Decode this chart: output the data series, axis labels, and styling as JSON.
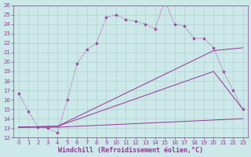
{
  "xlabel": "Windchill (Refroidissement éolien,°C)",
  "bg_color": "#cce8e8",
  "line_color": "#993399",
  "grid_color": "#aacccc",
  "xlim": [
    -0.5,
    23.5
  ],
  "ylim": [
    12,
    26
  ],
  "xticks": [
    0,
    1,
    2,
    3,
    4,
    5,
    6,
    7,
    8,
    9,
    10,
    11,
    12,
    13,
    14,
    15,
    16,
    17,
    18,
    19,
    20,
    21,
    22,
    23
  ],
  "yticks": [
    12,
    13,
    14,
    15,
    16,
    17,
    18,
    19,
    20,
    21,
    22,
    23,
    24,
    25,
    26
  ],
  "line1_x": [
    0,
    1,
    2,
    3,
    4,
    5,
    6,
    7,
    8,
    9,
    10,
    11,
    12,
    13,
    14,
    15,
    16,
    17,
    18,
    19,
    20,
    21,
    22,
    23
  ],
  "line1_y": [
    16.7,
    14.8,
    13.1,
    13.0,
    12.5,
    16.0,
    19.8,
    21.3,
    22.0,
    24.7,
    25.0,
    24.5,
    24.3,
    24.0,
    23.5,
    26.5,
    24.0,
    23.8,
    22.5,
    22.5,
    21.5,
    19.0,
    17.0,
    15.0
  ],
  "line2_x": [
    0,
    4,
    20,
    23
  ],
  "line2_y": [
    13.1,
    13.2,
    21.2,
    21.5
  ],
  "line3_x": [
    0,
    4,
    20,
    23
  ],
  "line3_y": [
    13.1,
    13.2,
    19.0,
    15.0
  ],
  "line4_x": [
    0,
    4,
    23
  ],
  "line4_y": [
    13.1,
    13.1,
    14.0
  ],
  "tick_fontsize": 5,
  "xlabel_fontsize": 6,
  "marker": "*",
  "markersize": 3
}
